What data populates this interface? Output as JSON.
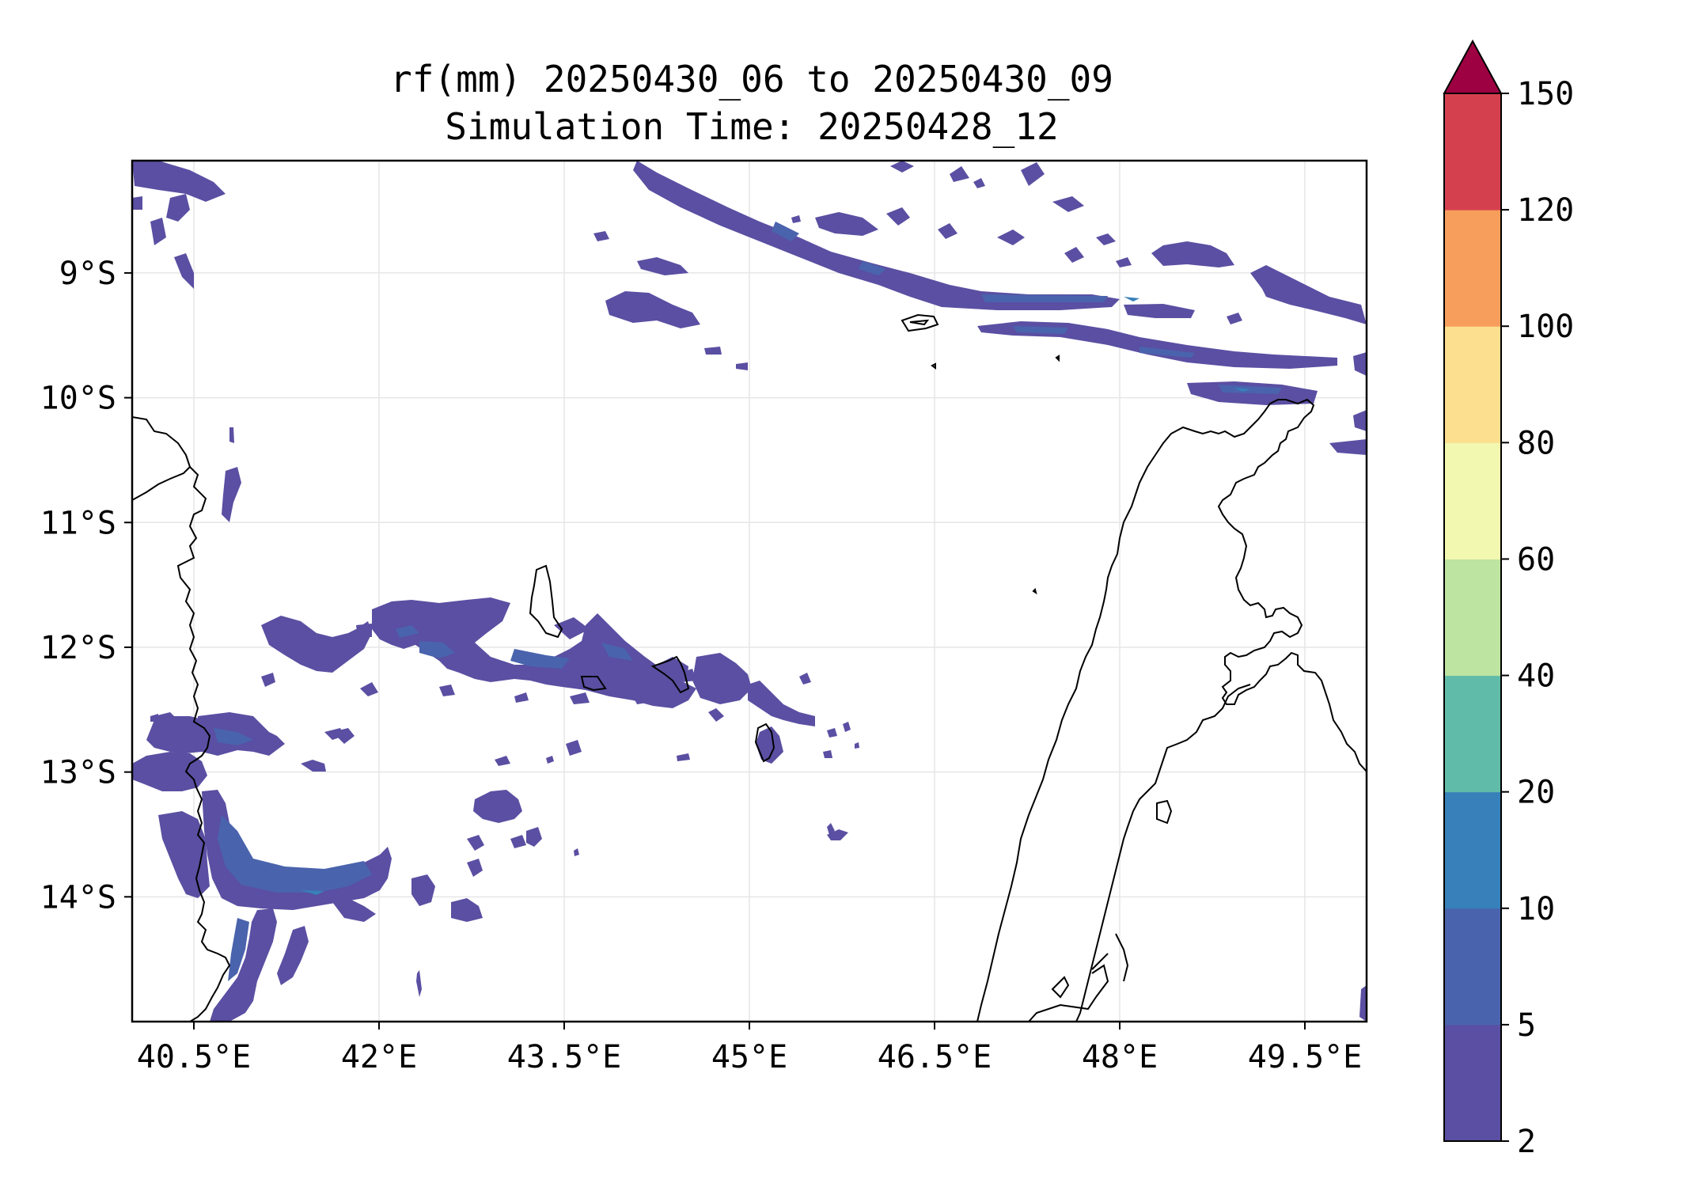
{
  "title": {
    "line1": "rf(mm) 20250430_06 to 20250430_09",
    "line2": "Simulation Time: 20250428_12"
  },
  "map": {
    "lon_range": [
      40.0,
      50.0
    ],
    "lat_range": [
      -15.0,
      -8.1
    ],
    "grid": true,
    "x_ticks": [
      {
        "value": 40.5,
        "label": "40.5°E"
      },
      {
        "value": 42.0,
        "label": "42°E"
      },
      {
        "value": 43.5,
        "label": "43.5°E"
      },
      {
        "value": 45.0,
        "label": "45°E"
      },
      {
        "value": 46.5,
        "label": "46.5°E"
      },
      {
        "value": 48.0,
        "label": "48°E"
      },
      {
        "value": 49.5,
        "label": "49.5°E"
      }
    ],
    "y_ticks": [
      {
        "value": -9,
        "label": "9°S"
      },
      {
        "value": -10,
        "label": "10°S"
      },
      {
        "value": -11,
        "label": "11°S"
      },
      {
        "value": -12,
        "label": "12°S"
      },
      {
        "value": -13,
        "label": "13°S"
      },
      {
        "value": -14,
        "label": "14°S"
      }
    ],
    "features": [
      "coastline-mozambique-tanzania",
      "comoros-islands",
      "mayotte",
      "madagascar-north",
      "aldabra-atoll"
    ]
  },
  "colorbar": {
    "levels": [
      2,
      5,
      10,
      20,
      40,
      60,
      80,
      100,
      120,
      150
    ],
    "labels": [
      "2",
      "5",
      "10",
      "20",
      "40",
      "60",
      "80",
      "100",
      "120",
      "150"
    ],
    "colors": [
      "#5a4fa2",
      "#4a63ad",
      "#3880b9",
      "#60bca8",
      "#bde4a0",
      "#f3f8b0",
      "#fcdf8f",
      "#f89e5c",
      "#d5404f"
    ],
    "extend_color": "#9e0142"
  }
}
